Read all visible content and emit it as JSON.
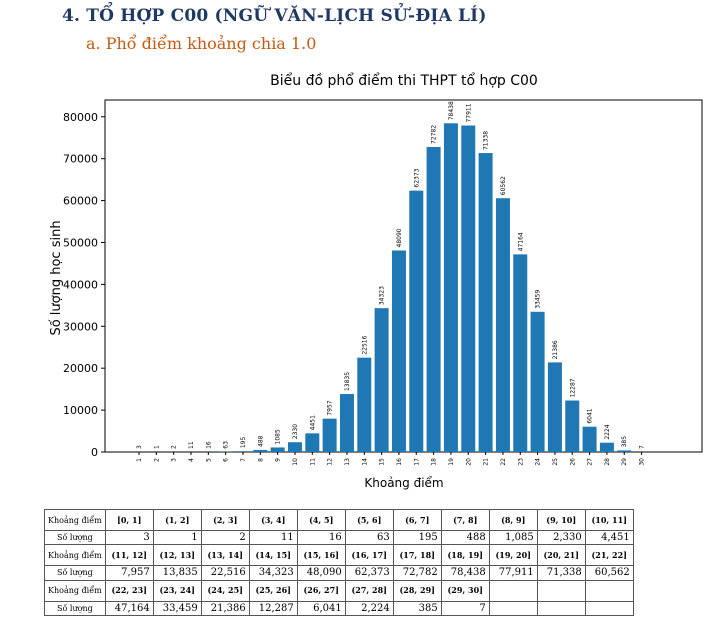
{
  "heading": "4.  TỔ HỢP C00 (NGỮ VĂN-LỊCH SỬ-ĐỊA LÍ)",
  "subheading": "a.  Phổ điểm khoảng chia 1.0",
  "chart_data": {
    "type": "bar",
    "title": "Biểu đồ phổ điểm thi THPT tổ hợp C00",
    "xlabel": "Khoảng điểm",
    "ylabel": "Số lượng học sinh",
    "ylim": [
      0,
      84000
    ],
    "yticks": [
      "0",
      "10000",
      "20000",
      "30000",
      "40000",
      "50000",
      "60000",
      "70000",
      "80000"
    ],
    "color": "#1f77b4",
    "categories": [
      "1",
      "2",
      "3",
      "4",
      "5",
      "6",
      "7",
      "8",
      "9",
      "10",
      "11",
      "12",
      "13",
      "14",
      "15",
      "16",
      "17",
      "18",
      "19",
      "20",
      "21",
      "22",
      "23",
      "24",
      "25",
      "26",
      "27",
      "28",
      "29",
      "30"
    ],
    "values": [
      3,
      1,
      2,
      11,
      16,
      63,
      195,
      488,
      1085,
      2330,
      4451,
      7957,
      13835,
      22516,
      34323,
      48090,
      62373,
      72782,
      78438,
      77911,
      71338,
      60562,
      47164,
      33459,
      21386,
      12287,
      6041,
      2224,
      385,
      7
    ],
    "data_labels": [
      "3",
      "1",
      "2",
      "11",
      "16",
      "63",
      "195",
      "488",
      "1085",
      "2330",
      "4451",
      "7957",
      "13835",
      "22516",
      "34323",
      "48090",
      "62373",
      "72782",
      "78438",
      "77911",
      "71338",
      "60562",
      "47164",
      "33459",
      "21386",
      "12287",
      "6041",
      "2224",
      "385",
      "7"
    ]
  },
  "table": {
    "range_label": "Khoảng điểm",
    "count_label": "Số lượng",
    "rows": [
      {
        "ranges": [
          "[0, 1]",
          "(1, 2]",
          "(2, 3]",
          "(3, 4]",
          "(4, 5]",
          "(5, 6]",
          "(6, 7]",
          "(7, 8]",
          "(8, 9]",
          "(9, 10]",
          "(10, 11]"
        ],
        "counts": [
          "3",
          "1",
          "2",
          "11",
          "16",
          "63",
          "195",
          "488",
          "1,085",
          "2,330",
          "4,451"
        ]
      },
      {
        "ranges": [
          "(11, 12]",
          "(12, 13]",
          "(13, 14]",
          "(14, 15]",
          "(15, 16]",
          "(16, 17]",
          "(17, 18]",
          "(18, 19]",
          "(19, 20]",
          "(20, 21]",
          "(21, 22]"
        ],
        "counts": [
          "7,957",
          "13,835",
          "22,516",
          "34,323",
          "48,090",
          "62,373",
          "72,782",
          "78,438",
          "77,911",
          "71,338",
          "60,562"
        ]
      },
      {
        "ranges": [
          "(22, 23]",
          "(23, 24]",
          "(24, 25]",
          "(25, 26]",
          "(26, 27]",
          "(27, 28]",
          "(28, 29]",
          "(29, 30]",
          "",
          "",
          ""
        ],
        "counts": [
          "47,164",
          "33,459",
          "21,386",
          "12,287",
          "6,041",
          "2,224",
          "385",
          "7",
          "",
          "",
          ""
        ]
      }
    ]
  }
}
